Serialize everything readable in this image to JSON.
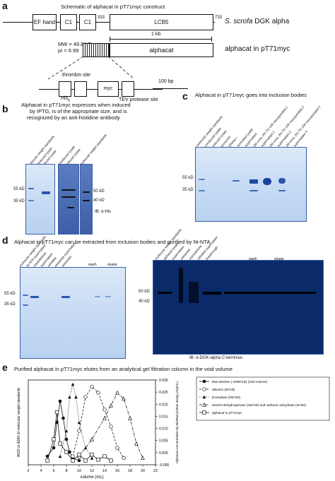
{
  "panel_a": {
    "letter": "a",
    "title": "Schematic of alphacat in pT71myc construct",
    "domains": [
      "EF hand",
      "C1",
      "C1",
      "LCB5"
    ],
    "num_333": "333",
    "num_733": "733",
    "dgk_label_italic": "S. scrofa",
    "dgk_label_rest": " DGK alpha",
    "scale_1kb": "1 kb",
    "mw": "MW = 49.8 kD",
    "pi": "pI = 6.99",
    "alphacat_box": "alphacat",
    "alphacat_label": "alphacat in pT71myc",
    "thrombin": "thrombin site",
    "his": "His",
    "his_sub": "6",
    "myc": "myc",
    "tev": "TEV protease site",
    "scale_100bp": "100 bp"
  },
  "panel_b": {
    "letter": "b",
    "caption_lines": [
      "Alphacat in pT71myc expresses when induced",
      "by IPTG, is of the appropriate size, and is",
      "recognized by an anti-histidine antibody"
    ],
    "lanes_gel1": [
      "molecular weight standards",
      "uninduced lysate",
      "induced lysate"
    ],
    "lanes_gel2": [
      "uninduced lysate",
      "induced lysate",
      "molecular weight standards"
    ],
    "mw_left": [
      "55 kD",
      "35 kD"
    ],
    "mw_right": [
      "50 kD",
      "40 kD"
    ],
    "ib": "IB: α-His"
  },
  "panel_c": {
    "letter": "c",
    "caption": "Alphacat in pT71myc goes into inclusion bodies",
    "lanes": [
      "molecular weight standards",
      "uninduced lysate",
      "induced lysate",
      "lysozyme",
      "DNAse I",
      "sonicated lysate",
      "supernatant",
      "2M urea, 2% TX-100 resuspended 1",
      "supernatant 1",
      "2M urea, 2% TX-100 resuspended 2",
      "supernatant 2",
      "2M urea, 2% TX-100 resuspended 3",
      "supernatant 3"
    ],
    "mw": [
      "55 kD",
      "35 kD"
    ]
  },
  "panel_d": {
    "letter": "d",
    "caption": "Alphacat in pT71myc can be extracted from inclusion bodies and purified by Ni-NTA",
    "lanes_left": [
      "molecular weight standards",
      "Ni-NTA supernatant",
      "resolubilized",
      "supernatant",
      "refolded",
      "extracted supernatant",
      "extracted"
    ],
    "wash": "wash",
    "eluate": "eluate",
    "mw_left": [
      "55 kD",
      "35 kD"
    ],
    "lanes_right": [
      "molecular weight standards",
      "alphacat lysate",
      "supernatant",
      "extracted",
      "resolubilized",
      "refolded supernatant",
      "flowthrough"
    ],
    "mw_right": [
      "50 kD",
      "40 kD"
    ],
    "ib": "IB: α-DGK-alpha C-terminus"
  },
  "panel_e": {
    "letter": "e",
    "caption": "Purified alphacat in pT71myc elutes from an analytical gel filtration column in the void volume"
  },
  "chart_data": {
    "type": "line",
    "xlabel": "volume (mL)",
    "ylabel_left": "A620 or A280 of molecular weight standards",
    "ylabel_right": "Alphacat concentration by BioRad protein assay (mg/mL)",
    "xlim": [
      2,
      22
    ],
    "x_ticks": [
      "2",
      "4",
      "6",
      "8",
      "10",
      "12",
      "14",
      "16",
      "18",
      "20",
      "22"
    ],
    "ylim_right": [
      -0.005,
      0.03
    ],
    "y_right_ticks": [
      "0.030",
      "0.025",
      "0.020",
      "0.015",
      "0.010",
      "0.005",
      "0.000",
      "-0.005"
    ],
    "legend_position": "right",
    "series": [
      {
        "name": "blue dextran (~2000 kD) (void volume)",
        "marker": "filled-circle",
        "x": [
          5,
          6,
          6.5,
          7,
          7.5,
          8,
          8.5,
          9,
          10
        ],
        "y": [
          0.1,
          0.2,
          0.5,
          0.75,
          0.55,
          0.3,
          0.15,
          0.08,
          0.05
        ]
      },
      {
        "name": "albumin (66 kD)",
        "marker": "open-circle",
        "x": [
          9,
          10,
          11,
          12,
          13,
          14,
          15,
          16,
          17
        ],
        "y": [
          0.1,
          0.4,
          0.8,
          0.92,
          0.85,
          0.65,
          0.45,
          0.2,
          0.08
        ]
      },
      {
        "name": "β-amylase (200 kD)",
        "marker": "filled-triangle",
        "x": [
          7,
          8,
          8.5,
          9,
          9.5,
          10,
          11,
          12
        ],
        "y": [
          0.1,
          0.4,
          0.8,
          0.95,
          0.8,
          0.5,
          0.2,
          0.08
        ]
      },
      {
        "name": "alcohol dehydrogenase (150 kD) and carbonic anhydrase (29 kD)",
        "marker": "open-triangle",
        "x": [
          10,
          12,
          14,
          15,
          16,
          17,
          18,
          19,
          20
        ],
        "y": [
          0.1,
          0.3,
          0.55,
          0.7,
          0.85,
          0.78,
          0.55,
          0.25,
          0.08
        ]
      },
      {
        "name": "alphacat in pT71myc",
        "marker": "open-square",
        "x": [
          5,
          6,
          6.5,
          7,
          8,
          9,
          10,
          11,
          12,
          13,
          14,
          15
        ],
        "y": [
          0.05,
          0.3,
          0.62,
          0.25,
          0.15,
          0.05,
          0.12,
          0.05,
          0.12,
          0.06,
          0.1,
          0.05
        ]
      }
    ]
  }
}
